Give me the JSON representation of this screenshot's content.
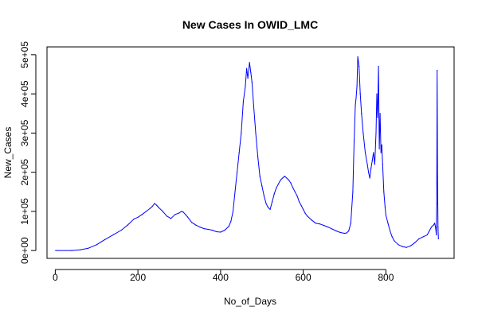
{
  "chart_data": {
    "type": "line",
    "title": "New Cases In OWID_LMC",
    "xlabel": "No_of_Days",
    "ylabel": "New_Cases",
    "xlim": [
      -20,
      965
    ],
    "ylim": [
      -20000,
      520000
    ],
    "x_ticks": [
      0,
      200,
      400,
      600,
      800
    ],
    "x_tick_labels": [
      "0",
      "200",
      "400",
      "600",
      "800"
    ],
    "y_ticks": [
      0,
      100000,
      200000,
      300000,
      400000,
      500000
    ],
    "y_tick_labels": [
      "0e+00",
      "1e+05",
      "2e+05",
      "3e+05",
      "4e+05",
      "5e+05"
    ],
    "grid": false,
    "series": [
      {
        "color": "#0000ff",
        "x": [
          1,
          40,
          60,
          80,
          100,
          120,
          140,
          160,
          175,
          190,
          200,
          210,
          220,
          230,
          235,
          240,
          245,
          250,
          260,
          270,
          280,
          290,
          300,
          305,
          310,
          315,
          320,
          330,
          340,
          350,
          360,
          370,
          380,
          390,
          400,
          410,
          420,
          425,
          430,
          435,
          440,
          445,
          450,
          455,
          460,
          463,
          466,
          470,
          473,
          476,
          480,
          485,
          490,
          495,
          500,
          505,
          510,
          515,
          520,
          525,
          530,
          535,
          540,
          545,
          550,
          555,
          560,
          565,
          570,
          575,
          580,
          585,
          590,
          595,
          600,
          605,
          610,
          620,
          630,
          640,
          650,
          660,
          670,
          680,
          690,
          700,
          705,
          710,
          715,
          720,
          723,
          726,
          728,
          730,
          732,
          735,
          738,
          741,
          745,
          750,
          755,
          758,
          761,
          764,
          767,
          770,
          773,
          776,
          778,
          780,
          782,
          784,
          786,
          788,
          790,
          792,
          795,
          798,
          800,
          805,
          810,
          815,
          820,
          830,
          840,
          850,
          860,
          870,
          880,
          890,
          900,
          905,
          910,
          915,
          918,
          920,
          922,
          923,
          924,
          925,
          926,
          927
        ],
        "y": [
          0,
          0,
          2000,
          6000,
          15000,
          28000,
          40000,
          52000,
          65000,
          80000,
          85000,
          92000,
          100000,
          108000,
          113000,
          120000,
          116000,
          110000,
          100000,
          88000,
          82000,
          92000,
          96000,
          100000,
          98000,
          92000,
          86000,
          72000,
          65000,
          60000,
          56000,
          54000,
          52000,
          48000,
          47000,
          52000,
          62000,
          75000,
          100000,
          150000,
          200000,
          250000,
          300000,
          380000,
          420000,
          465000,
          440000,
          480000,
          455000,
          430000,
          370000,
          300000,
          240000,
          190000,
          165000,
          140000,
          120000,
          110000,
          105000,
          125000,
          145000,
          160000,
          170000,
          180000,
          185000,
          190000,
          185000,
          180000,
          172000,
          160000,
          150000,
          140000,
          125000,
          115000,
          105000,
          95000,
          88000,
          78000,
          70000,
          68000,
          64000,
          60000,
          55000,
          50000,
          46000,
          44000,
          45000,
          50000,
          70000,
          150000,
          280000,
          370000,
          390000,
          420000,
          495000,
          470000,
          400000,
          350000,
          300000,
          250000,
          220000,
          200000,
          185000,
          210000,
          230000,
          250000,
          220000,
          300000,
          400000,
          340000,
          470000,
          260000,
          350000,
          250000,
          270000,
          220000,
          150000,
          110000,
          90000,
          70000,
          50000,
          35000,
          25000,
          15000,
          10000,
          8000,
          12000,
          20000,
          30000,
          35000,
          40000,
          50000,
          60000,
          65000,
          70000,
          60000,
          40000,
          120000,
          460000,
          190000,
          60000,
          30000
        ]
      }
    ]
  }
}
